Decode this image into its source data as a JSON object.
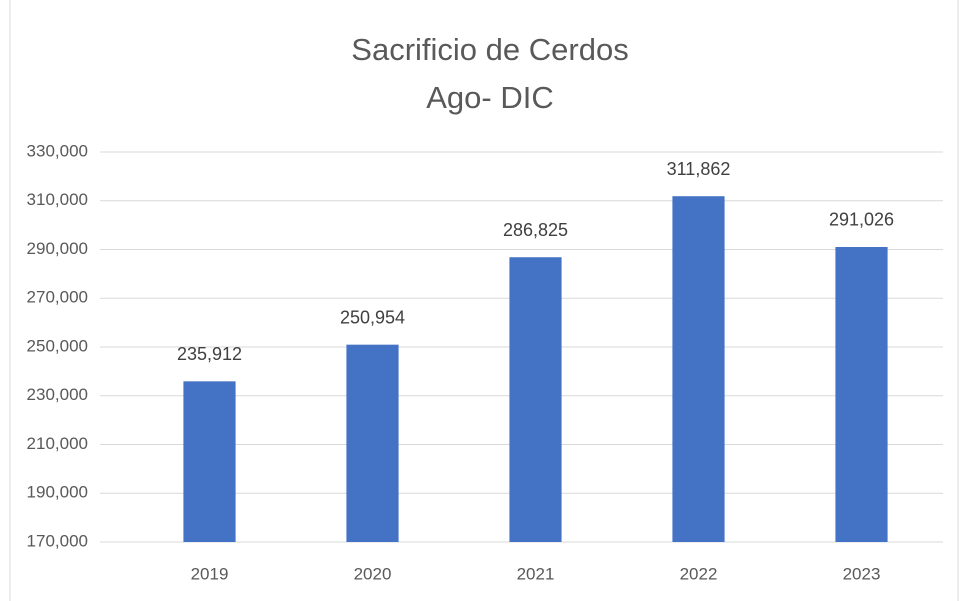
{
  "chart_data": {
    "type": "bar",
    "title": "Sacrificio de Cerdos",
    "subtitle": "Ago- DIC",
    "categories": [
      "2019",
      "2020",
      "2021",
      "2022",
      "2023"
    ],
    "values": [
      235912,
      250954,
      286825,
      311862,
      291026
    ],
    "value_labels": [
      "235,912",
      "250,954",
      "286,825",
      "311,862",
      "291,026"
    ],
    "color": "#4472c4",
    "ylim": [
      170000,
      330000
    ],
    "yticks": [
      {
        "value": 170000,
        "label": "170,000"
      },
      {
        "value": 190000,
        "label": "190,000"
      },
      {
        "value": 210000,
        "label": "210,000"
      },
      {
        "value": 230000,
        "label": "230,000"
      },
      {
        "value": 250000,
        "label": "250,000"
      },
      {
        "value": 270000,
        "label": "270,000"
      },
      {
        "value": 290000,
        "label": "290,000"
      },
      {
        "value": 310000,
        "label": "310,000"
      },
      {
        "value": 330000,
        "label": "330,000"
      }
    ],
    "grid": true
  }
}
